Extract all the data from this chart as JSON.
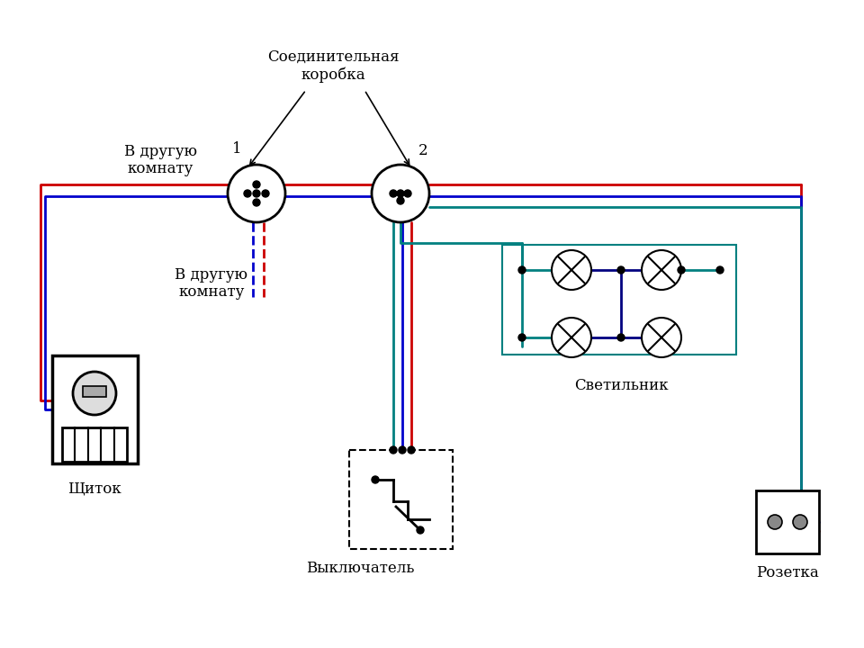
{
  "bg_color": "#ffffff",
  "wire_red": "#cc0000",
  "wire_blue": "#0000cc",
  "wire_green": "#008080",
  "wire_dark_blue": "#000080",
  "wire_lw": 2.0,
  "label_schitok": "Щиток",
  "label_vykluchatel": "Выключатель",
  "label_rozetka": "Розетка",
  "label_svetilnik": "Светильник",
  "label_korobka": "Соединительная\nкоробка",
  "label_v_druguyu1": "В другую\nкомнату",
  "label_v_druguyu2": "В другую\nкомнату"
}
